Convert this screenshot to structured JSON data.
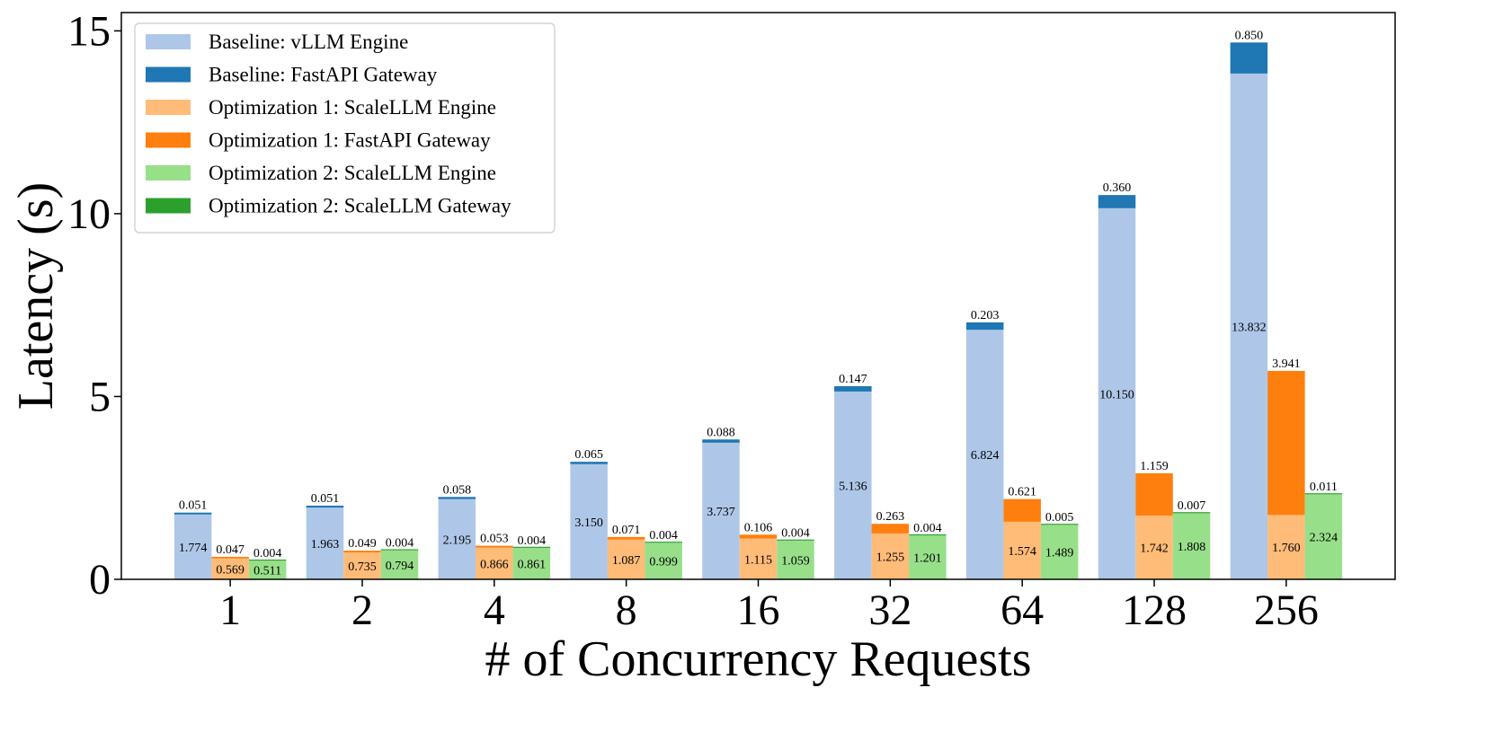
{
  "chart_data": {
    "type": "bar",
    "stacked": true,
    "grouped": true,
    "xlabel": "# of Concurrency Requests",
    "ylabel": "Latency (s)",
    "ylim": [
      0,
      15.5
    ],
    "yticks": [
      "0",
      "5",
      "10",
      "15"
    ],
    "categories": [
      "1",
      "2",
      "4",
      "8",
      "16",
      "32",
      "64",
      "128",
      "256"
    ],
    "legend_position": "top-left",
    "grid": false,
    "groups": [
      {
        "name": "Baseline",
        "segments": [
          {
            "name": "Baseline: vLLM Engine",
            "color": "#aec7e8",
            "values": [
              1.774,
              1.963,
              2.195,
              3.15,
              3.737,
              5.136,
              6.824,
              10.15,
              13.832
            ],
            "labels": [
              "1.774",
              "1.963",
              "2.195",
              "3.150",
              "3.737",
              "5.136",
              "6.824",
              "10.150",
              "13.832"
            ]
          },
          {
            "name": "Baseline: FastAPI Gateway",
            "color": "#1f77b4",
            "values": [
              0.051,
              0.051,
              0.058,
              0.065,
              0.088,
              0.147,
              0.203,
              0.36,
              0.85
            ],
            "labels": [
              "0.051",
              "0.051",
              "0.058",
              "0.065",
              "0.088",
              "0.147",
              "0.203",
              "0.360",
              "0.850"
            ]
          }
        ]
      },
      {
        "name": "Optimization 1",
        "segments": [
          {
            "name": "Optimization 1: ScaleLLM Engine",
            "color": "#ffbb78",
            "values": [
              0.569,
              0.735,
              0.866,
              1.087,
              1.115,
              1.255,
              1.574,
              1.742,
              1.76
            ],
            "labels": [
              "0.569",
              "0.735",
              "0.866",
              "1.087",
              "1.115",
              "1.255",
              "1.574",
              "1.742",
              "1.760"
            ]
          },
          {
            "name": "Optimization 1: FastAPI Gateway",
            "color": "#ff7f0e",
            "values": [
              0.047,
              0.049,
              0.053,
              0.071,
              0.106,
              0.263,
              0.621,
              1.159,
              3.941
            ],
            "labels": [
              "0.047",
              "0.049",
              "0.053",
              "0.071",
              "0.106",
              "0.263",
              "0.621",
              "1.159",
              "3.941"
            ]
          }
        ]
      },
      {
        "name": "Optimization 2",
        "segments": [
          {
            "name": "Optimization 2: ScaleLLM Engine",
            "color": "#98df8a",
            "values": [
              0.511,
              0.794,
              0.861,
              0.999,
              1.059,
              1.201,
              1.489,
              1.808,
              2.324
            ],
            "labels": [
              "0.511",
              "0.794",
              "0.861",
              "0.999",
              "1.059",
              "1.201",
              "1.489",
              "1.808",
              "2.324"
            ]
          },
          {
            "name": "Optimization 2: ScaleLLM Gateway",
            "color": "#2ca02c",
            "values": [
              0.004,
              0.004,
              0.004,
              0.004,
              0.004,
              0.004,
              0.005,
              0.007,
              0.011
            ],
            "labels": [
              "0.004",
              "0.004",
              "0.004",
              "0.004",
              "0.004",
              "0.004",
              "0.005",
              "0.007",
              "0.011"
            ]
          }
        ]
      }
    ]
  }
}
